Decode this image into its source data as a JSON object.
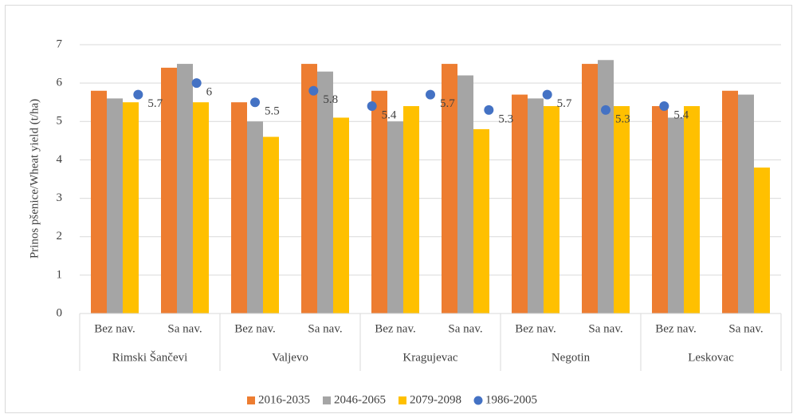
{
  "chart_data": {
    "type": "bar",
    "y_label": "Prinos pšenice/Wheat yield (t/ha)",
    "categories": [
      "Bez nav.",
      "Sa nav.",
      "Bez nav.",
      "Sa nav.",
      "Bez nav.",
      "Sa nav.",
      "Bez nav.",
      "Sa nav.",
      "Bez nav.",
      "Sa nav."
    ],
    "groups": [
      "Rimski Šančevi",
      "Valjevo",
      "Kragujevac",
      "Negotin",
      "Leskovac"
    ],
    "series": [
      {
        "name": "2016-2035",
        "color": "#ed7d31",
        "values": [
          5.8,
          6.4,
          5.5,
          6.5,
          5.8,
          6.5,
          5.7,
          6.5,
          5.4,
          5.8
        ]
      },
      {
        "name": "2046-2065",
        "color": "#a5a5a5",
        "values": [
          5.6,
          6.5,
          5.0,
          6.3,
          5.0,
          6.2,
          5.6,
          6.6,
          5.1,
          5.7
        ]
      },
      {
        "name": "2079-2098",
        "color": "#ffc000",
        "values": [
          5.5,
          5.5,
          4.6,
          5.1,
          5.4,
          4.8,
          5.4,
          5.4,
          5.4,
          3.8
        ]
      },
      {
        "name": "1986-2005",
        "color": "#4472c4",
        "type": "scatter",
        "values": [
          5.7,
          6,
          5.5,
          5.8,
          5.4,
          5.7,
          5.3,
          5.7,
          5.3,
          5.4
        ]
      }
    ],
    "ylim": [
      0,
      7
    ],
    "yticks": [
      0,
      1,
      2,
      3,
      4,
      5,
      6,
      7
    ],
    "legend": "bottom"
  }
}
